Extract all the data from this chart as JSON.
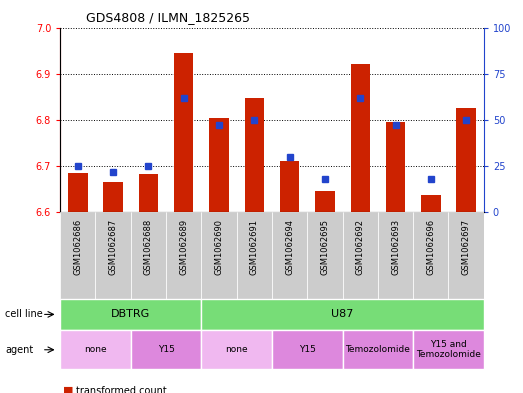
{
  "title": "GDS4808 / ILMN_1825265",
  "samples": [
    "GSM1062686",
    "GSM1062687",
    "GSM1062688",
    "GSM1062689",
    "GSM1062690",
    "GSM1062691",
    "GSM1062694",
    "GSM1062695",
    "GSM1062692",
    "GSM1062693",
    "GSM1062696",
    "GSM1062697"
  ],
  "transformed_count": [
    6.685,
    6.665,
    6.682,
    6.945,
    6.805,
    6.848,
    6.71,
    6.645,
    6.92,
    6.795,
    6.638,
    6.825
  ],
  "percentile_rank": [
    25,
    22,
    25,
    62,
    47,
    50,
    30,
    18,
    62,
    47,
    18,
    50
  ],
  "ylim_left": [
    6.6,
    7.0
  ],
  "ylim_right": [
    0,
    100
  ],
  "yticks_left": [
    6.6,
    6.7,
    6.8,
    6.9,
    7.0
  ],
  "yticks_right": [
    0,
    25,
    50,
    75,
    100
  ],
  "bar_color": "#cc2200",
  "dot_color": "#2244cc",
  "baseline": 6.6,
  "cell_line_labels": [
    "DBTRG",
    "U87"
  ],
  "cell_line_spans": [
    [
      0,
      4
    ],
    [
      4,
      12
    ]
  ],
  "cell_line_color": "#77dd77",
  "agent_labels": [
    "none",
    "Y15",
    "none",
    "Y15",
    "Temozolomide",
    "Y15 and\nTemozolomide"
  ],
  "agent_spans": [
    [
      0,
      2
    ],
    [
      2,
      4
    ],
    [
      4,
      6
    ],
    [
      6,
      8
    ],
    [
      8,
      10
    ],
    [
      10,
      12
    ]
  ],
  "agent_colors": [
    "#f0b8f0",
    "#dd88dd",
    "#f0b8f0",
    "#dd88dd",
    "#dd88dd",
    "#dd88dd"
  ],
  "tick_bg_color": "#cccccc",
  "bar_width": 0.55,
  "xlim": [
    -0.5,
    11.5
  ]
}
